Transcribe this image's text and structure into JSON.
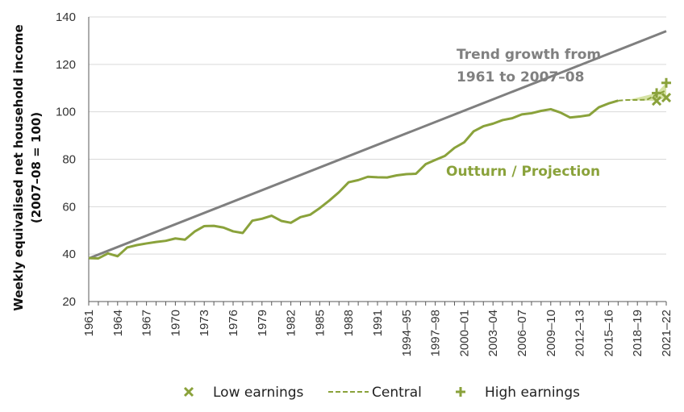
{
  "chart_data": {
    "type": "line",
    "xlabel": "",
    "ylabel_lines": [
      "Weekly equivalised net household  income",
      "(2007–08 = 100)"
    ],
    "ylim": [
      20,
      140
    ],
    "yticks": [
      20,
      40,
      60,
      80,
      100,
      120,
      140
    ],
    "x_ticks": [
      "1961",
      "1964",
      "1967",
      "1970",
      "1973",
      "1976",
      "1979",
      "1982",
      "1985",
      "1988",
      "1991",
      "1994–95",
      "1997–98",
      "2000–01",
      "2003–04",
      "2006–07",
      "2009–10",
      "2012–13",
      "2015–16",
      "2018–19",
      "2021–22"
    ],
    "grid": "horizontal",
    "annotations": {
      "trend_line1": "Trend growth from",
      "trend_line2": "1961 to 2007–08",
      "outturn": "Outturn / Projection"
    },
    "series": [
      {
        "name": "Trend growth from 1961 to 2007–08",
        "x_index": [
          0,
          60
        ],
        "values": [
          38.2,
          134
        ]
      },
      {
        "name": "Outturn / Projection",
        "x_index": [
          0,
          1,
          2,
          3,
          4,
          5,
          6,
          7,
          8,
          9,
          10,
          11,
          12,
          13,
          14,
          15,
          16,
          17,
          18,
          19,
          20,
          21,
          22,
          23,
          24,
          25,
          26,
          27,
          28,
          29,
          30,
          31,
          32,
          33,
          34,
          35,
          36,
          37,
          38,
          39,
          40,
          41,
          42,
          43,
          44,
          45,
          46,
          47,
          48,
          49,
          50,
          51,
          52,
          53,
          54,
          55
        ],
        "values": [
          38.3,
          38.2,
          40.3,
          39.1,
          42.8,
          43.8,
          44.5,
          45.1,
          45.6,
          46.6,
          46.1,
          49.5,
          51.8,
          51.9,
          51.2,
          49.6,
          48.9,
          54.1,
          54.9,
          56.2,
          54.0,
          53.2,
          55.6,
          56.6,
          59.4,
          62.6,
          66.1,
          70.3,
          71.2,
          72.6,
          72.4,
          72.3,
          73.2,
          73.7,
          73.9,
          77.9,
          79.7,
          81.4,
          84.8,
          87.1,
          91.8,
          93.9,
          95.0,
          96.5,
          97.3,
          98.9,
          99.4,
          100.4,
          101.1,
          99.7,
          97.6,
          98.0,
          98.6,
          101.9,
          103.5,
          104.7
        ]
      },
      {
        "name": "Central",
        "x_index": [
          56,
          57,
          58,
          59,
          60
        ],
        "values": [
          105.0,
          105.0,
          105.1,
          107.3,
          109.0
        ]
      },
      {
        "name": "Low earnings",
        "x_index": [
          59,
          60
        ],
        "values": [
          104.6,
          106.0
        ]
      },
      {
        "name": "High earnings",
        "x_index": [
          59,
          60
        ],
        "values": [
          107.9,
          112.2
        ]
      }
    ],
    "legend": {
      "placement": "bottom",
      "items": [
        {
          "label": "Low earnings",
          "marker": "x"
        },
        {
          "label": "Central",
          "marker": "dashed-line"
        },
        {
          "label": "High earnings",
          "marker": "plus"
        }
      ]
    },
    "colors": {
      "trend": "#7f7f7f",
      "outturn": "#8aa23b",
      "band": "#d6e3a4",
      "grid": "#d9d9d9",
      "axis": "#595959"
    }
  }
}
